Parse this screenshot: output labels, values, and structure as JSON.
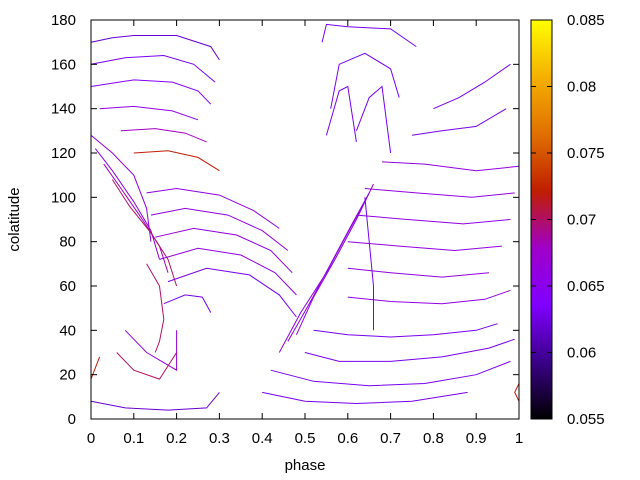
{
  "chart_data": {
    "type": "line",
    "xlabel": "phase",
    "ylabel": "colatitude",
    "xlim": [
      0,
      1
    ],
    "ylim": [
      0,
      180
    ],
    "x_ticks": [
      "0",
      "0.1",
      "0.2",
      "0.3",
      "0.4",
      "0.5",
      "0.6",
      "0.7",
      "0.8",
      "0.9",
      "1"
    ],
    "y_ticks": [
      "0",
      "20",
      "40",
      "60",
      "80",
      "100",
      "120",
      "140",
      "160",
      "180"
    ],
    "colorbar": {
      "range": [
        0.055,
        0.085
      ],
      "ticks": [
        "0.055",
        "0.06",
        "0.065",
        "0.07",
        "0.075",
        "0.08",
        "0.085"
      ],
      "palette": [
        "#000000",
        "#3a0088",
        "#8000ff",
        "#a000c8",
        "#c01e00",
        "#e07000",
        "#f5b000",
        "#ffff00"
      ]
    },
    "series": [
      {
        "color_value": 0.062,
        "x": [
          0.0,
          0.05,
          0.1,
          0.2,
          0.28,
          0.3
        ],
        "y": [
          170,
          172,
          173,
          173,
          168,
          162
        ]
      },
      {
        "color_value": 0.063,
        "x": [
          0.0,
          0.08,
          0.17,
          0.24,
          0.29
        ],
        "y": [
          160,
          163,
          164,
          160,
          152
        ]
      },
      {
        "color_value": 0.064,
        "x": [
          0.0,
          0.1,
          0.19,
          0.25,
          0.28
        ],
        "y": [
          150,
          153,
          152,
          148,
          142
        ]
      },
      {
        "color_value": 0.066,
        "x": [
          0.02,
          0.1,
          0.19,
          0.25
        ],
        "y": [
          140,
          141,
          139,
          135
        ]
      },
      {
        "color_value": 0.068,
        "x": [
          0.07,
          0.15,
          0.22,
          0.27
        ],
        "y": [
          130,
          131,
          129,
          125
        ]
      },
      {
        "color_value": 0.072,
        "x": [
          0.1,
          0.18,
          0.25,
          0.3
        ],
        "y": [
          120,
          121,
          118,
          112
        ]
      },
      {
        "color_value": 0.066,
        "x": [
          0.0,
          0.05,
          0.1,
          0.13,
          0.14
        ],
        "y": [
          128,
          120,
          110,
          95,
          80
        ]
      },
      {
        "color_value": 0.066,
        "x": [
          0.01,
          0.05,
          0.1,
          0.14,
          0.16
        ],
        "y": [
          122,
          112,
          98,
          85,
          72
        ]
      },
      {
        "color_value": 0.068,
        "x": [
          0.03,
          0.07,
          0.12,
          0.16,
          0.18
        ],
        "y": [
          115,
          104,
          90,
          78,
          66
        ]
      },
      {
        "color_value": 0.07,
        "x": [
          0.05,
          0.09,
          0.14,
          0.18,
          0.2
        ],
        "y": [
          108,
          96,
          84,
          72,
          60
        ]
      },
      {
        "color_value": 0.066,
        "x": [
          0.13,
          0.2,
          0.3,
          0.38,
          0.44
        ],
        "y": [
          102,
          104,
          101,
          94,
          86
        ]
      },
      {
        "color_value": 0.066,
        "x": [
          0.14,
          0.22,
          0.32,
          0.4,
          0.46
        ],
        "y": [
          92,
          95,
          92,
          85,
          76
        ]
      },
      {
        "color_value": 0.066,
        "x": [
          0.15,
          0.24,
          0.34,
          0.42,
          0.47
        ],
        "y": [
          82,
          86,
          83,
          76,
          66
        ]
      },
      {
        "color_value": 0.066,
        "x": [
          0.16,
          0.25,
          0.35,
          0.43,
          0.48
        ],
        "y": [
          72,
          77,
          74,
          66,
          56
        ]
      },
      {
        "color_value": 0.063,
        "x": [
          0.18,
          0.27,
          0.37,
          0.44,
          0.48
        ],
        "y": [
          62,
          68,
          65,
          56,
          46
        ]
      },
      {
        "color_value": 0.063,
        "x": [
          0.17,
          0.22,
          0.26,
          0.28
        ],
        "y": [
          52,
          56,
          55,
          48
        ]
      },
      {
        "color_value": 0.07,
        "x": [
          0.13,
          0.16,
          0.17,
          0.16,
          0.15
        ],
        "y": [
          70,
          60,
          45,
          35,
          30
        ]
      },
      {
        "color_value": 0.066,
        "x": [
          0.08,
          0.13,
          0.2,
          0.2
        ],
        "y": [
          40,
          30,
          22,
          40
        ]
      },
      {
        "color_value": 0.07,
        "x": [
          0.06,
          0.1,
          0.16,
          0.2
        ],
        "y": [
          30,
          22,
          18,
          30
        ]
      },
      {
        "color_value": 0.062,
        "x": [
          0.0,
          0.08,
          0.18,
          0.27,
          0.3
        ],
        "y": [
          8,
          5,
          4,
          5,
          12
        ]
      },
      {
        "color_value": 0.072,
        "x": [
          0.0,
          0.02
        ],
        "y": [
          18,
          28
        ]
      },
      {
        "color_value": 0.063,
        "x": [
          0.5,
          0.58,
          0.7,
          0.82,
          0.93,
          0.99
        ],
        "y": [
          30,
          26,
          26,
          28,
          32,
          36
        ]
      },
      {
        "color_value": 0.063,
        "x": [
          0.42,
          0.52,
          0.65,
          0.78,
          0.9,
          0.98
        ],
        "y": [
          22,
          17,
          15,
          16,
          20,
          26
        ]
      },
      {
        "color_value": 0.063,
        "x": [
          0.4,
          0.5,
          0.62,
          0.75,
          0.88
        ],
        "y": [
          12,
          8,
          7,
          8,
          12
        ]
      },
      {
        "color_value": 0.063,
        "x": [
          0.52,
          0.6,
          0.7,
          0.8,
          0.9,
          0.95
        ],
        "y": [
          40,
          38,
          37,
          38,
          40,
          43
        ]
      },
      {
        "color_value": 0.066,
        "x": [
          0.6,
          0.7,
          0.82,
          0.92,
          0.98
        ],
        "y": [
          55,
          53,
          52,
          54,
          58
        ]
      },
      {
        "color_value": 0.066,
        "x": [
          0.6,
          0.7,
          0.82,
          0.93
        ],
        "y": [
          68,
          66,
          64,
          66
        ]
      },
      {
        "color_value": 0.066,
        "x": [
          0.6,
          0.72,
          0.85,
          0.96
        ],
        "y": [
          80,
          78,
          76,
          78
        ]
      },
      {
        "color_value": 0.066,
        "x": [
          0.62,
          0.74,
          0.87,
          0.98
        ],
        "y": [
          92,
          90,
          88,
          90
        ]
      },
      {
        "color_value": 0.066,
        "x": [
          0.64,
          0.76,
          0.89,
          0.99
        ],
        "y": [
          104,
          102,
          100,
          102
        ]
      },
      {
        "color_value": 0.066,
        "x": [
          0.68,
          0.78,
          0.9,
          1.0
        ],
        "y": [
          116,
          115,
          112,
          114
        ]
      },
      {
        "color_value": 0.063,
        "x": [
          0.75,
          0.82,
          0.9,
          0.97
        ],
        "y": [
          128,
          130,
          132,
          140
        ]
      },
      {
        "color_value": 0.063,
        "x": [
          0.8,
          0.86,
          0.92,
          0.98
        ],
        "y": [
          140,
          145,
          152,
          160
        ]
      },
      {
        "color_value": 0.066,
        "x": [
          0.48,
          0.52,
          0.57,
          0.62,
          0.66
        ],
        "y": [
          38,
          55,
          72,
          90,
          106
        ]
      },
      {
        "color_value": 0.066,
        "x": [
          0.46,
          0.51,
          0.56,
          0.61,
          0.65
        ],
        "y": [
          35,
          52,
          70,
          88,
          102
        ]
      },
      {
        "color_value": 0.066,
        "x": [
          0.44,
          0.49,
          0.55,
          0.6,
          0.64
        ],
        "y": [
          30,
          48,
          66,
          84,
          98
        ]
      },
      {
        "color_value": 0.063,
        "x": [
          0.66,
          0.66,
          0.65,
          0.64
        ],
        "y": [
          40,
          60,
          80,
          100
        ]
      },
      {
        "color_value": 0.063,
        "x": [
          0.54,
          0.55,
          0.6,
          0.7,
          0.76
        ],
        "y": [
          170,
          178,
          177,
          176,
          168
        ]
      },
      {
        "color_value": 0.063,
        "x": [
          0.56,
          0.58,
          0.64,
          0.7,
          0.72
        ],
        "y": [
          140,
          160,
          165,
          158,
          145
        ]
      },
      {
        "color_value": 0.063,
        "x": [
          0.62,
          0.65,
          0.68,
          0.7
        ],
        "y": [
          130,
          145,
          150,
          120
        ]
      },
      {
        "color_value": 0.063,
        "x": [
          0.55,
          0.58,
          0.6,
          0.62
        ],
        "y": [
          128,
          148,
          150,
          125
        ]
      },
      {
        "color_value": 0.072,
        "x": [
          1.0,
          0.99,
          1.0
        ],
        "y": [
          16,
          12,
          8
        ]
      }
    ]
  }
}
